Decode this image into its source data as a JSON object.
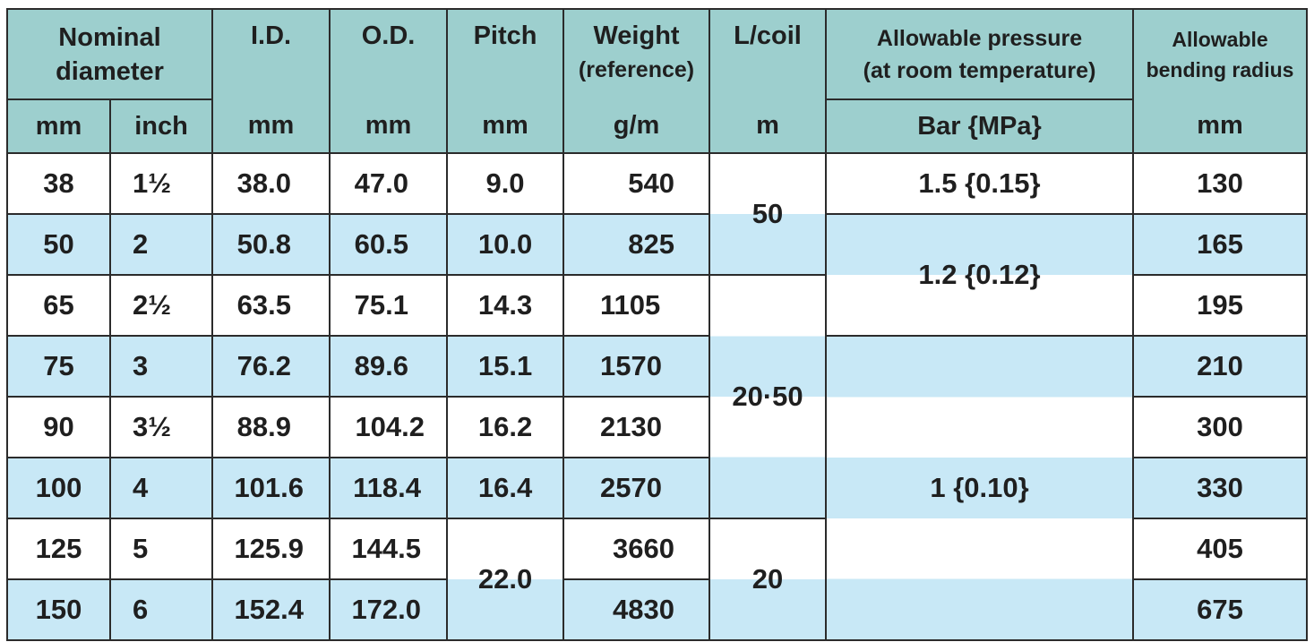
{
  "header": {
    "nominal_diameter": [
      "Nominal",
      "diameter"
    ],
    "id": "I.D.",
    "od": "O.D.",
    "pitch": "Pitch",
    "weight": "Weight",
    "weight_note": "(reference)",
    "lcoil": "L/coil",
    "pressure": [
      "Allowable pressure",
      "(at room temperature)"
    ],
    "bending": [
      "Allowable",
      "bending radius"
    ],
    "units": {
      "nominal_mm": "mm",
      "nominal_inch": "inch",
      "id": "mm",
      "od": "mm",
      "pitch": "mm",
      "weight": "g/m",
      "lcoil": "m",
      "pressure": "Bar {MPa}",
      "bending": "mm"
    }
  },
  "rows": [
    {
      "mm": "38",
      "inch": "1½",
      "id": "38.0",
      "od": "47.0",
      "pitch": "9.0",
      "weight": "540",
      "bending": "130"
    },
    {
      "mm": "50",
      "inch": "2",
      "id": "50.8",
      "od": "60.5",
      "pitch": "10.0",
      "weight": "825",
      "bending": "165"
    },
    {
      "mm": "65",
      "inch": "2½",
      "id": "63.5",
      "od": "75.1",
      "pitch": "14.3",
      "weight": "1105",
      "bending": "195"
    },
    {
      "mm": "75",
      "inch": "3",
      "id": "76.2",
      "od": "89.6",
      "pitch": "15.1",
      "weight": "1570",
      "bending": "210"
    },
    {
      "mm": "90",
      "inch": "3½",
      "id": "88.9",
      "od": "104.2",
      "pitch": "16.2",
      "weight": "2130",
      "bending": "300"
    },
    {
      "mm": "100",
      "inch": "4",
      "id": "101.6",
      "od": "118.4",
      "pitch": "16.4",
      "weight": "2570",
      "bending": "330"
    },
    {
      "mm": "125",
      "inch": "5",
      "id": "125.9",
      "od": "144.5",
      "weight": "3660",
      "bending": "405"
    },
    {
      "mm": "150",
      "inch": "6",
      "id": "152.4",
      "od": "172.0",
      "weight": "4830",
      "bending": "675"
    }
  ],
  "merged": {
    "pitch_125_150": "22.0",
    "lcoil_38_50": "50",
    "lcoil_65_100": "20·50",
    "lcoil_125_150": "20",
    "pressure_38": "1.5 {0.15}",
    "pressure_50_65": "1.2 {0.12}",
    "pressure_75_150": "1 {0.10}"
  },
  "colors": {
    "header_bg": "#9dcfce",
    "band_blue": "#c8e8f6",
    "band_white": "#ffffff",
    "border": "#2b2b2b"
  }
}
